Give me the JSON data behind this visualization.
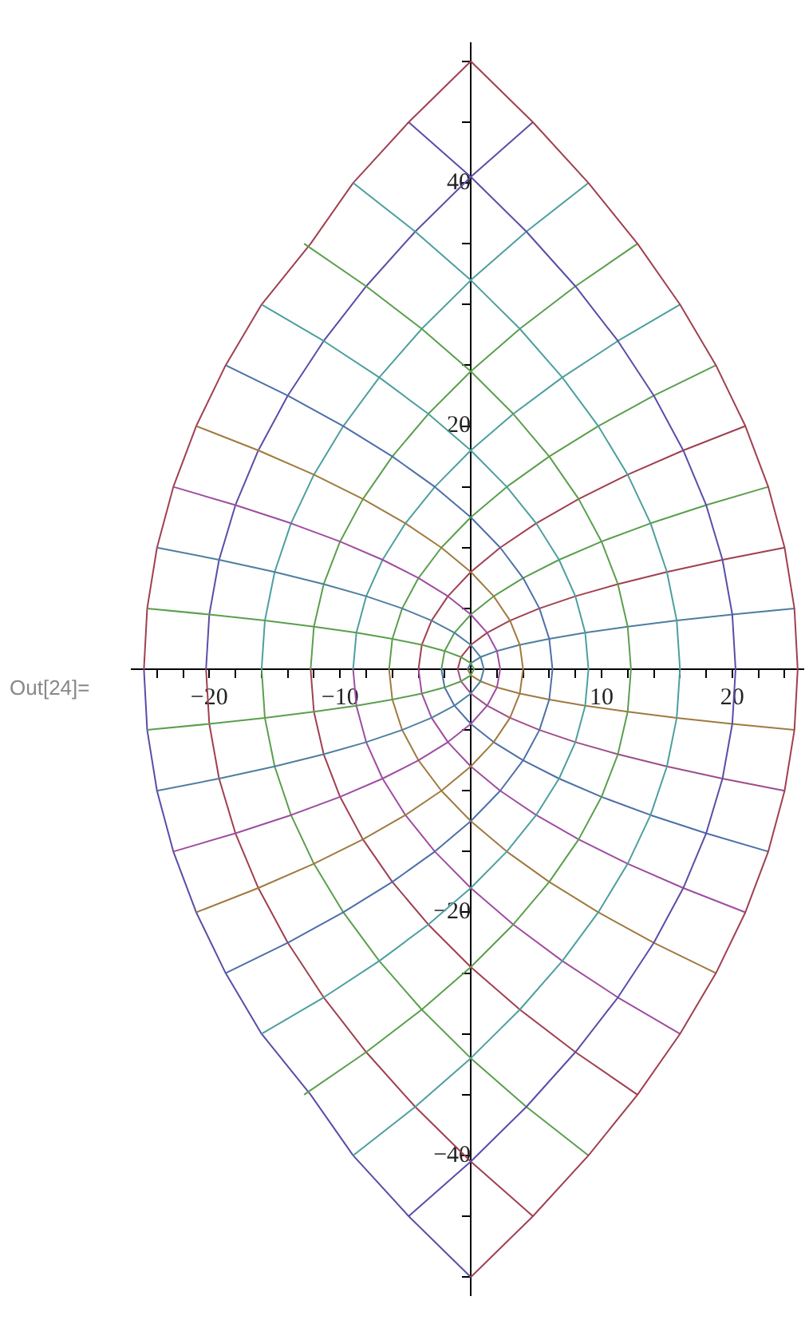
{
  "chart_data": {
    "type": "line",
    "marker": "none",
    "grid": false,
    "legend": false,
    "annotations": [
      "Out[24]="
    ],
    "xlim": [
      -26,
      25.5
    ],
    "ylim": [
      -51.5,
      51.5
    ],
    "xticks": [
      {
        "value": -24,
        "label": null
      },
      {
        "value": -22,
        "label": null
      },
      {
        "value": -20,
        "label": "−20"
      },
      {
        "value": -18,
        "label": null
      },
      {
        "value": -16,
        "label": null
      },
      {
        "value": -14,
        "label": null
      },
      {
        "value": -12,
        "label": null
      },
      {
        "value": -10,
        "label": "−10"
      },
      {
        "value": -8,
        "label": null
      },
      {
        "value": -6,
        "label": null
      },
      {
        "value": -4,
        "label": null
      },
      {
        "value": -2,
        "label": null
      },
      {
        "value": 2,
        "label": null
      },
      {
        "value": 4,
        "label": null
      },
      {
        "value": 6,
        "label": null
      },
      {
        "value": 8,
        "label": null
      },
      10,
      {
        "value": 12,
        "label": null
      },
      {
        "value": 14,
        "label": null
      },
      {
        "value": 16,
        "label": null
      },
      {
        "value": 18,
        "label": null
      },
      20,
      {
        "value": 22,
        "label": null
      },
      {
        "value": 24,
        "label": null
      }
    ],
    "yticks": [
      {
        "value": -50,
        "label": null
      },
      {
        "value": -45,
        "label": null
      },
      {
        "value": -40,
        "label": "−40"
      },
      {
        "value": -35,
        "label": null
      },
      {
        "value": -30,
        "label": null
      },
      {
        "value": -25,
        "label": null
      },
      {
        "value": -20,
        "label": "−20"
      },
      {
        "value": -15,
        "label": null
      },
      {
        "value": -10,
        "label": null
      },
      {
        "value": -5,
        "label": null
      },
      {
        "value": 5,
        "label": null
      },
      {
        "value": 10,
        "label": null
      },
      {
        "value": 15,
        "label": null
      },
      20,
      {
        "value": 25,
        "label": null
      },
      {
        "value": 30,
        "label": null
      },
      {
        "value": 35,
        "label": null
      },
      40,
      {
        "value": 45,
        "label": null
      },
      {
        "value": 50,
        "label": null
      }
    ],
    "series": [
      {
        "color": "#5a9f4d",
        "x": [
          -24.75,
          -20,
          -15.75,
          -12,
          -8.75,
          -6,
          -3.75,
          -2,
          -0.75,
          0,
          0.25,
          0,
          -0.75,
          -2,
          -3.75,
          -6,
          -8.75,
          -12,
          -15.75,
          -20,
          -24.75
        ],
        "values": [
          -5,
          -4.5,
          -4,
          -3.5,
          -3,
          -2.5,
          -2,
          -1.5,
          -1,
          -0.5,
          0,
          0.5,
          1,
          1.5,
          2,
          2.5,
          3,
          3.5,
          4,
          4.5,
          5
        ]
      },
      {
        "color": "#4d7f9f",
        "x": [
          -24,
          -19.25,
          -15,
          -11.25,
          -8,
          -5.25,
          -3,
          -1.25,
          0,
          0.75,
          1,
          0.75,
          0,
          -1.25,
          -3,
          -5.25,
          -8,
          -11.25,
          -15,
          -19.25,
          -24
        ],
        "values": [
          -10,
          -9,
          -8,
          -7,
          -6,
          -5,
          -4,
          -3,
          -2,
          -1,
          0,
          1,
          2,
          3,
          4,
          5,
          6,
          7,
          8,
          9,
          10
        ]
      },
      {
        "color": "#9f4da0",
        "x": [
          -22.75,
          -18,
          -13.75,
          -10,
          -6.75,
          -4,
          -1.75,
          0,
          1.25,
          2,
          2.25,
          2,
          1.25,
          0,
          -1.75,
          -4,
          -6.75,
          -10,
          -13.75,
          -18,
          -22.75
        ],
        "values": [
          -15,
          -13.5,
          -12,
          -10.5,
          -9,
          -7.5,
          -6,
          -4.5,
          -3,
          -1.5,
          0,
          1.5,
          3,
          4.5,
          6,
          7.5,
          9,
          10.5,
          12,
          13.5,
          15
        ]
      },
      {
        "color": "#a07a40",
        "x": [
          -21,
          -16.25,
          -12,
          -8.25,
          -5,
          -2.25,
          0,
          1.75,
          3,
          3.75,
          4,
          3.75,
          3,
          1.75,
          0,
          -2.25,
          -5,
          -8.25,
          -12,
          -16.25,
          -21
        ],
        "values": [
          -20,
          -18,
          -16,
          -14,
          -12,
          -10,
          -8,
          -6,
          -4,
          -2,
          0,
          2,
          4,
          6,
          8,
          10,
          12,
          14,
          16,
          18,
          20
        ]
      },
      {
        "color": "#4d6fa8",
        "x": [
          -18.75,
          -14,
          -9.75,
          -6,
          -2.75,
          0,
          2.25,
          4,
          5.25,
          6,
          6.25,
          6,
          5.25,
          4,
          2.25,
          0,
          -2.75,
          -6,
          -9.75,
          -14,
          -18.75
        ],
        "values": [
          -25,
          -22.5,
          -20,
          -17.5,
          -15,
          -12.5,
          -10,
          -7.5,
          -5,
          -2.5,
          0,
          2.5,
          5,
          7.5,
          10,
          12.5,
          15,
          17.5,
          20,
          22.5,
          25
        ]
      },
      {
        "color": "#4d9f9f",
        "x": [
          -16,
          -11.25,
          -7,
          -3.25,
          0,
          2.75,
          5,
          6.75,
          8,
          8.75,
          9,
          8.75,
          8,
          6.75,
          5,
          2.75,
          0,
          -3.25,
          -7,
          -11.25,
          -16
        ],
        "values": [
          -30,
          -27,
          -24,
          -21,
          -18,
          -15,
          -12,
          -9,
          -6,
          -3,
          0,
          3,
          6,
          9,
          12,
          15,
          18,
          21,
          24,
          27,
          30
        ]
      },
      {
        "color": "#5a9f4d",
        "x": [
          -12.75,
          -8,
          -3.75,
          0,
          3.25,
          6,
          8.25,
          10,
          11.25,
          12,
          12.25,
          12,
          11.25,
          10,
          8.25,
          6,
          3.25,
          0,
          -3.75,
          -8,
          -12.75
        ],
        "values": [
          -35,
          -31.5,
          -28,
          -24.5,
          -21,
          -17.5,
          -14,
          -10.5,
          -7,
          -3.5,
          0,
          3.5,
          7,
          10.5,
          14,
          17.5,
          21,
          24.5,
          28,
          31.5,
          35
        ]
      },
      {
        "color": "#4d9f9f",
        "x": [
          -9,
          -4.25,
          0,
          3.75,
          7,
          9.75,
          12,
          13.75,
          15,
          15.75,
          16,
          15.75,
          15,
          13.75,
          12,
          9.75,
          7,
          3.75,
          0,
          -4.25,
          -9
        ],
        "values": [
          -40,
          -36,
          -32,
          -28,
          -24,
          -20,
          -16,
          -12,
          -8,
          -4,
          0,
          4,
          8,
          12,
          16,
          20,
          24,
          28,
          32,
          36,
          40
        ]
      },
      {
        "color": "#5a4da8",
        "x": [
          -4.75,
          0,
          4.25,
          8,
          11.25,
          14,
          16.25,
          18,
          19.25,
          20,
          20.25,
          20,
          19.25,
          18,
          16.25,
          14,
          11.25,
          8,
          4.25,
          0,
          -4.75
        ],
        "values": [
          -45,
          -40.5,
          -36,
          -31.5,
          -27,
          -22.5,
          -18,
          -13.5,
          -9,
          -4.5,
          0,
          4.5,
          9,
          13.5,
          18,
          22.5,
          27,
          31.5,
          36,
          40.5,
          45
        ]
      },
      {
        "color": "#a0404f",
        "x": [
          0,
          4.75,
          9,
          12.75,
          16,
          18.75,
          21,
          22.75,
          24,
          24.75,
          25,
          24.75,
          24,
          22.75,
          21,
          18.75,
          16,
          12.75,
          9,
          4.75,
          0
        ],
        "values": [
          -50,
          -45,
          -40,
          -35,
          -30,
          -25,
          -20,
          -15,
          -10,
          -5,
          0,
          5,
          10,
          15,
          20,
          25,
          30,
          35,
          40,
          45,
          50
        ]
      },
      {
        "color": "#4d7f9f",
        "x": [
          -0.25,
          0,
          0.75,
          2,
          3.75,
          6,
          8.75,
          12,
          15.75,
          20,
          24.75
        ],
        "values": [
          0,
          0.5,
          1,
          1.5,
          2,
          2.5,
          3,
          3.5,
          4,
          4.5,
          5
        ]
      },
      {
        "color": "#a07a40",
        "x": [
          -0.25,
          0,
          0.75,
          2,
          3.75,
          6,
          8.75,
          12,
          15.75,
          20,
          24.75
        ],
        "values": [
          0,
          -0.5,
          -1,
          -1.5,
          -2,
          -2.5,
          -3,
          -3.5,
          -4,
          -4.5,
          -5
        ]
      },
      {
        "color": "#a0404f",
        "x": [
          -1,
          -0.75,
          0,
          1.25,
          3,
          5.25,
          8,
          11.25,
          15,
          19.25,
          24
        ],
        "values": [
          0,
          1,
          2,
          3,
          4,
          5,
          6,
          7,
          8,
          9,
          10
        ]
      },
      {
        "color": "#9f4d8a",
        "x": [
          -1,
          -0.75,
          0,
          1.25,
          3,
          5.25,
          8,
          11.25,
          15,
          19.25,
          24
        ],
        "values": [
          0,
          -1,
          -2,
          -3,
          -4,
          -5,
          -6,
          -7,
          -8,
          -9,
          -10
        ]
      },
      {
        "color": "#5a9f4d",
        "x": [
          -2.25,
          -2,
          -1.25,
          0,
          1.75,
          4,
          6.75,
          10,
          13.75,
          18,
          22.75
        ],
        "values": [
          0,
          1.5,
          3,
          4.5,
          6,
          7.5,
          9,
          10.5,
          12,
          13.5,
          15
        ]
      },
      {
        "color": "#4d6fa8",
        "x": [
          -2.25,
          -2,
          -1.25,
          0,
          1.75,
          4,
          6.75,
          10,
          13.75,
          18,
          22.75
        ],
        "values": [
          0,
          -1.5,
          -3,
          -4.5,
          -6,
          -7.5,
          -9,
          -10.5,
          -12,
          -13.5,
          -15
        ]
      },
      {
        "color": "#a0404f",
        "x": [
          -4,
          -3.75,
          -3,
          -1.75,
          0,
          2.25,
          5,
          8.25,
          12,
          16.25,
          21
        ],
        "values": [
          0,
          2,
          4,
          6,
          8,
          10,
          12,
          14,
          16,
          18,
          20
        ]
      },
      {
        "color": "#9f4da0",
        "x": [
          -4,
          -3.75,
          -3,
          -1.75,
          0,
          2.25,
          5,
          8.25,
          12,
          16.25,
          21
        ],
        "values": [
          0,
          -2,
          -4,
          -6,
          -8,
          -10,
          -12,
          -14,
          -16,
          -18,
          -20
        ]
      },
      {
        "color": "#5a9f4d",
        "x": [
          -6.25,
          -6,
          -5.25,
          -4,
          -2.25,
          0,
          2.75,
          6,
          9.75,
          14,
          18.75
        ],
        "values": [
          0,
          2.5,
          5,
          7.5,
          10,
          12.5,
          15,
          17.5,
          20,
          22.5,
          25
        ]
      },
      {
        "color": "#a07a40",
        "x": [
          -6.25,
          -6,
          -5.25,
          -4,
          -2.25,
          0,
          2.75,
          6,
          9.75,
          14,
          18.75
        ],
        "values": [
          0,
          -2.5,
          -5,
          -7.5,
          -10,
          -12.5,
          -15,
          -17.5,
          -20,
          -22.5,
          -25
        ]
      },
      {
        "color": "#4d9f9f",
        "x": [
          -9,
          -8.75,
          -8,
          -6.75,
          -5,
          -2.75,
          0,
          3.25,
          7,
          11.25,
          16
        ],
        "values": [
          0,
          3,
          6,
          9,
          12,
          15,
          18,
          21,
          24,
          27,
          30
        ]
      },
      {
        "color": "#9f4da0",
        "x": [
          -9,
          -8.75,
          -8,
          -6.75,
          -5,
          -2.75,
          0,
          3.25,
          7,
          11.25,
          16
        ],
        "values": [
          0,
          -3,
          -6,
          -9,
          -12,
          -15,
          -18,
          -21,
          -24,
          -27,
          -30
        ]
      },
      {
        "color": "#5a9f4d",
        "x": [
          -12.25,
          -12,
          -11.25,
          -10,
          -8.25,
          -6,
          -3.25,
          0,
          3.75,
          8,
          12.75
        ],
        "values": [
          0,
          3.5,
          7,
          10.5,
          14,
          17.5,
          21,
          24.5,
          28,
          31.5,
          35
        ]
      },
      {
        "color": "#a0404f",
        "x": [
          -12.25,
          -12,
          -11.25,
          -10,
          -8.25,
          -6,
          -3.25,
          0,
          3.75,
          8,
          12.75
        ],
        "values": [
          0,
          -3.5,
          -7,
          -10.5,
          -14,
          -17.5,
          -21,
          -24.5,
          -28,
          -31.5,
          -35
        ]
      },
      {
        "color": "#4d9f9f",
        "x": [
          -16,
          -15.75,
          -15,
          -13.75,
          -12,
          -9.75,
          -7,
          -3.75,
          0,
          4.25,
          9
        ],
        "values": [
          0,
          4,
          8,
          12,
          16,
          20,
          24,
          28,
          32,
          36,
          40
        ]
      },
      {
        "color": "#5a9f4d",
        "x": [
          -16,
          -15.75,
          -15,
          -13.75,
          -12,
          -9.75,
          -7,
          -3.75,
          0,
          4.25,
          9
        ],
        "values": [
          0,
          -4,
          -8,
          -12,
          -16,
          -20,
          -24,
          -28,
          -32,
          -36,
          -40
        ]
      },
      {
        "color": "#5a4da8",
        "x": [
          -20.25,
          -20,
          -19.25,
          -18,
          -16.25,
          -14,
          -11.25,
          -8,
          -4.25,
          0,
          4.75
        ],
        "values": [
          0,
          4.5,
          9,
          13.5,
          18,
          22.5,
          27,
          31.5,
          36,
          40.5,
          45
        ]
      },
      {
        "color": "#a0404f",
        "x": [
          -20.25,
          -20,
          -19.25,
          -18,
          -16.25,
          -14,
          -11.25,
          -8,
          -4.25,
          0,
          4.75
        ],
        "values": [
          0,
          -4.5,
          -9,
          -13.5,
          -18,
          -22.5,
          -27,
          -31.5,
          -36,
          -40.5,
          -45
        ]
      },
      {
        "color": "#a0404f",
        "x": [
          -25,
          -24.75,
          -24,
          -22.75,
          -21,
          -18.75,
          -16,
          -12.25,
          -9,
          -4.75,
          0
        ],
        "values": [
          0,
          5,
          10,
          15,
          20,
          25,
          30,
          35,
          40,
          45,
          50
        ]
      },
      {
        "color": "#5a4da8",
        "x": [
          -25,
          -24.75,
          -24,
          -22.75,
          -21,
          -18.75,
          -16,
          -12.25,
          -9,
          -4.75,
          0
        ],
        "values": [
          0,
          -5,
          -10,
          -15,
          -20,
          -25,
          -30,
          -35,
          -40,
          -45,
          -50
        ]
      }
    ]
  }
}
